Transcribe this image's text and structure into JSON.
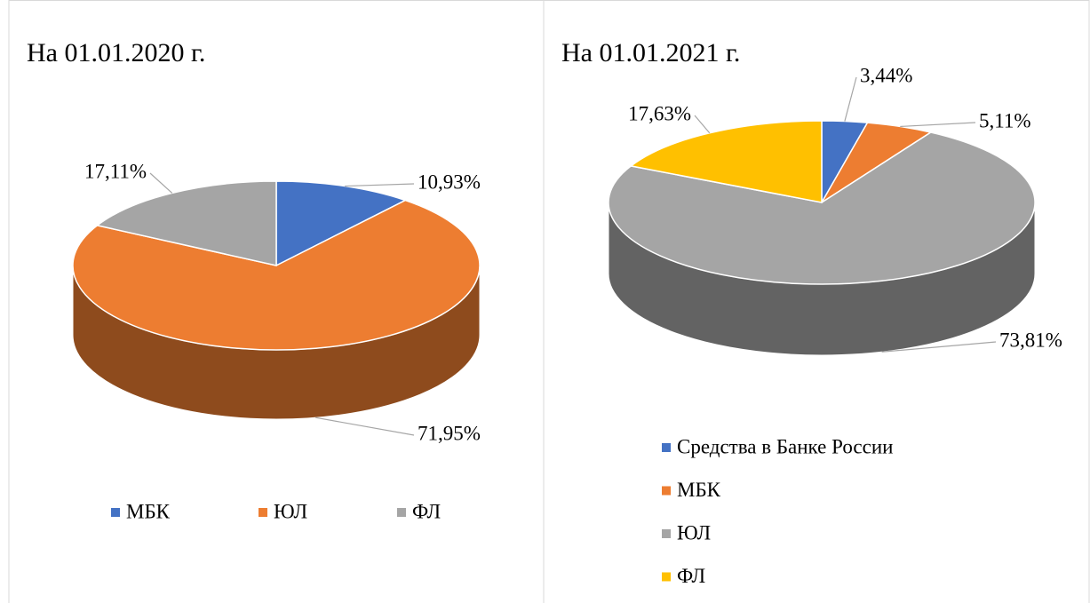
{
  "chart_data": [
    {
      "type": "pie",
      "title": "На 01.01.2020 г.",
      "categories": [
        "МБК",
        "ЮЛ",
        "ФЛ"
      ],
      "values": [
        10.93,
        71.95,
        17.11
      ],
      "value_labels": [
        "10,93%",
        "71,95%",
        "17,11%"
      ],
      "colors": [
        "#4472c4",
        "#ed7d31",
        "#a5a5a5"
      ],
      "legend": "bottom"
    },
    {
      "type": "pie",
      "title": "На 01.01.2021 г.",
      "categories": [
        "Средства в Банке России",
        "МБК",
        "ЮЛ",
        "ФЛ"
      ],
      "values": [
        3.44,
        5.11,
        73.81,
        17.63
      ],
      "value_labels": [
        "3,44%",
        "5,11%",
        "73,81%",
        "17,63%"
      ],
      "colors": [
        "#4472c4",
        "#ed7d31",
        "#a5a5a5",
        "#ffc000"
      ],
      "legend": "bottom"
    }
  ]
}
